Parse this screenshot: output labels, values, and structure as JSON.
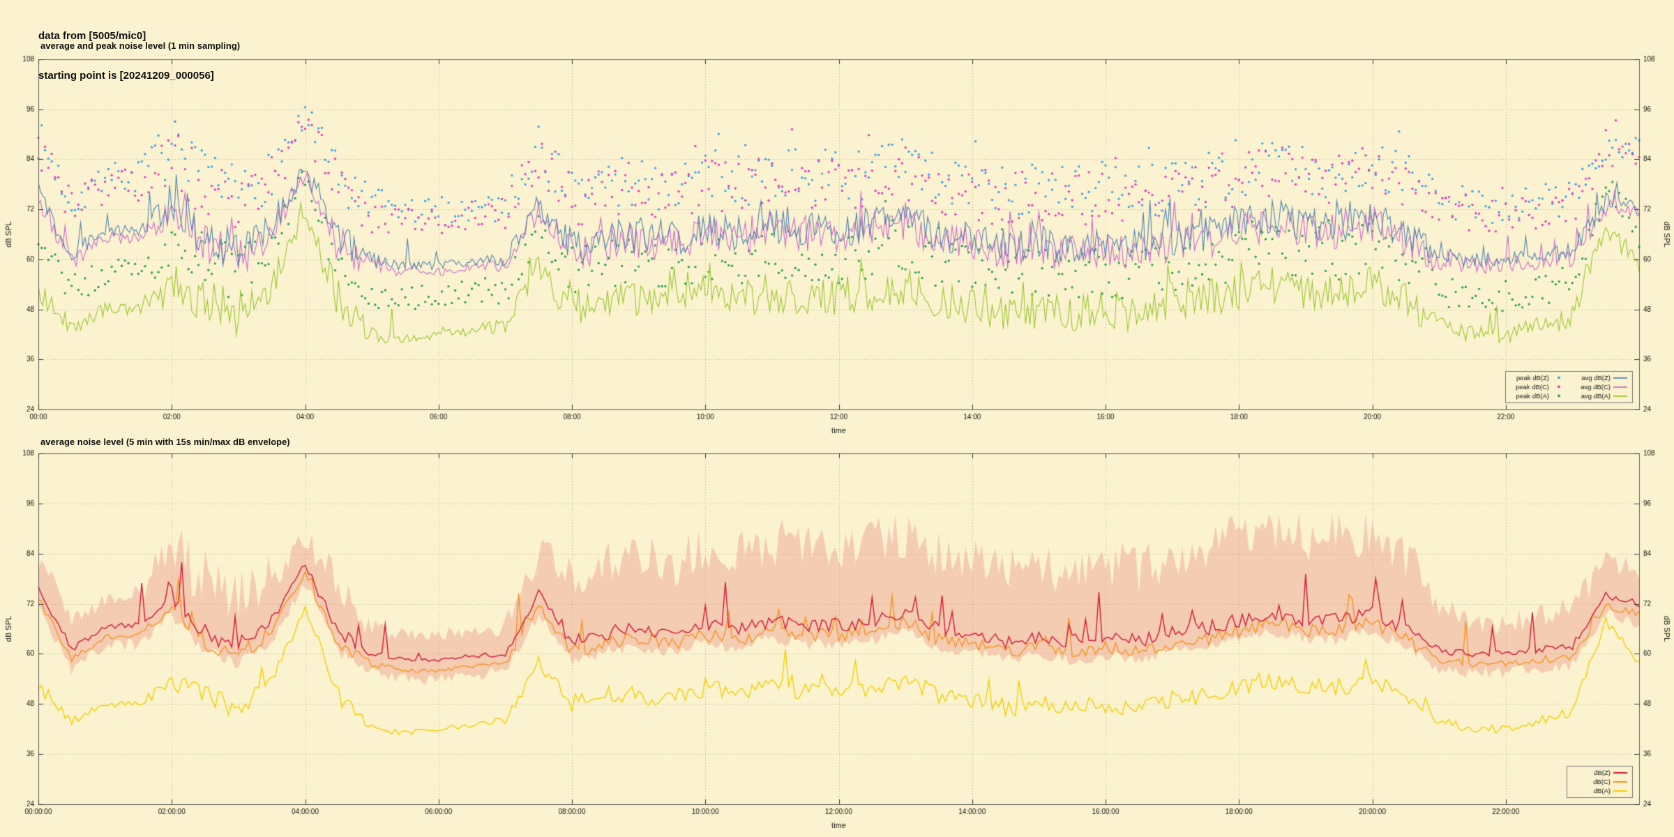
{
  "header": {
    "line1": "data from [5005/mic0]",
    "line2": "starting point is [20241209_000056]"
  },
  "colors": {
    "background": "#fbf3cf",
    "grid": "#b8ad85",
    "border": "#5f5f5f",
    "text": "#111111"
  },
  "chart_data": [
    {
      "type": "line",
      "title": "average and peak noise level (1 min sampling)",
      "xlabel": "time",
      "ylabel_left": "dB SPL",
      "ylabel_right": "dB SPL",
      "ylim": [
        24,
        108
      ],
      "yticks": [
        24,
        36,
        48,
        60,
        72,
        84,
        96,
        108
      ],
      "x_range_minutes": [
        0,
        1440
      ],
      "xtick_minutes": [
        0,
        120,
        240,
        360,
        480,
        600,
        720,
        840,
        960,
        1080,
        1200,
        1320
      ],
      "xtick_labels": [
        "00:00",
        "02:00",
        "04:00",
        "06:00",
        "08:00",
        "10:00",
        "12:00",
        "14:00",
        "16:00",
        "18:00",
        "20:00",
        "22:00"
      ],
      "grid": true,
      "anchor_step_min": 30,
      "sample_step_min": 2,
      "scatter_step_min": 3,
      "jitter_profile": [
        0.6,
        0.5,
        0.35,
        0.35,
        1.2,
        1.2,
        1.2,
        0.9,
        0.45,
        1.1,
        0.5,
        0.25,
        0.25,
        0.3,
        0.4,
        0.8,
        1,
        1,
        1,
        1,
        1,
        1,
        1,
        1,
        1,
        1,
        1,
        1,
        1,
        1,
        1,
        1,
        1,
        1,
        1,
        1,
        1,
        1,
        1,
        1,
        1,
        1,
        0.6,
        0.45,
        0.45,
        0.5,
        0.6,
        0.5,
        0.5
      ],
      "series": [
        {
          "name": "peak dB(Z)",
          "kind": "scatter",
          "color": "#42a0e8",
          "spread": 5,
          "cap": 96.5,
          "anchors": [
            89,
            74,
            79.5,
            80,
            87,
            78,
            75,
            81,
            94.5,
            78,
            73,
            71.5,
            71.5,
            72.5,
            73,
            87,
            76,
            78,
            79,
            78,
            80,
            79,
            81,
            80,
            80,
            81,
            83,
            79,
            78,
            76,
            77,
            76,
            77,
            76,
            78,
            79,
            81,
            83,
            81,
            81,
            83,
            79,
            74,
            73,
            73,
            74,
            75,
            87,
            85
          ]
        },
        {
          "name": "peak dB(C)",
          "kind": "scatter",
          "color": "#e23cc8",
          "spread": 5,
          "cap": 95,
          "anchors": [
            87,
            72,
            77.5,
            78,
            85,
            76,
            73,
            79,
            92.5,
            76,
            71,
            69.5,
            69.5,
            70.5,
            71,
            85,
            74,
            76,
            77,
            76,
            78,
            77,
            79,
            78,
            78,
            79,
            81,
            77,
            76,
            74,
            75,
            74,
            75,
            74,
            76,
            77,
            79,
            81,
            79,
            79,
            81,
            77,
            72,
            71,
            71,
            72,
            73,
            85,
            83
          ]
        },
        {
          "name": "peak dB(A)",
          "kind": "scatter",
          "color": "#2f9e55",
          "spread": 4.5,
          "cap": 84,
          "anchors": [
            61,
            53,
            57,
            57,
            63,
            59,
            56,
            62,
            80.5,
            59,
            51,
            50,
            51,
            52,
            53,
            67,
            57,
            59,
            59,
            58,
            61,
            59,
            61,
            60,
            60,
            61,
            63,
            59,
            58,
            56,
            57,
            56,
            57,
            56,
            58,
            59,
            61,
            63,
            61,
            61,
            63,
            59,
            53,
            51,
            51,
            53,
            55,
            77,
            67
          ]
        },
        {
          "name": "avg dB(A)",
          "kind": "line",
          "color": "#97c52e",
          "width": 1.1,
          "jitter": 4.5,
          "spike_p": 0.08,
          "spike_amp": 6,
          "anchors": [
            52,
            44,
            48,
            48,
            54,
            50,
            47,
            53,
            71.5,
            50,
            42,
            41,
            42,
            43,
            44,
            58,
            48,
            50,
            50,
            49,
            52,
            50,
            52,
            51,
            51,
            52,
            54,
            50,
            49,
            47,
            48,
            47,
            48,
            47,
            49,
            50,
            52,
            54,
            52,
            52,
            54,
            50,
            44,
            42,
            42,
            44,
            46,
            68,
            58
          ]
        },
        {
          "name": "avg dB(C)",
          "kind": "line",
          "color": "#cc66cc",
          "width": 1.1,
          "jitter": 4.2,
          "spike_p": 0.1,
          "spike_amp": 7,
          "anchors": [
            74.5,
            59.5,
            65,
            65.5,
            72.5,
            63.5,
            60.5,
            66.5,
            80,
            63.5,
            58.5,
            57,
            57,
            58,
            58.5,
            72.5,
            61.5,
            63.5,
            64.5,
            63.5,
            65.5,
            64.5,
            66.5,
            65.5,
            65.5,
            66.5,
            68.5,
            64.5,
            63.5,
            61.5,
            62.5,
            61.5,
            62.5,
            61.5,
            63.5,
            64.5,
            66.5,
            68.5,
            66.5,
            66.5,
            68.5,
            64.5,
            59.5,
            58.5,
            58.5,
            59.5,
            60.5,
            72.5,
            70.5
          ]
        },
        {
          "name": "avg dB(Z)",
          "kind": "line",
          "color": "#4f81b0",
          "width": 1.1,
          "jitter": 4.2,
          "spike_p": 0.1,
          "spike_amp": 7,
          "anchors": [
            76,
            61,
            66.5,
            67,
            74,
            65,
            62,
            68,
            81.5,
            65,
            60,
            58.5,
            58.5,
            59.5,
            60,
            74,
            63,
            65,
            66,
            65,
            67,
            66,
            68,
            67,
            67,
            68,
            70,
            66,
            65,
            63,
            64,
            63,
            64,
            63,
            65,
            66,
            68,
            70,
            68,
            68,
            70,
            66,
            61,
            60,
            60,
            61,
            62,
            74,
            72
          ]
        }
      ],
      "legend": {
        "position": "bottom-right",
        "columns": [
          [
            "peak dB(Z)",
            "peak dB(C)",
            "peak dB(A)"
          ],
          [
            "avg dB(Z)",
            "avg dB(C)",
            "avg dB(A)"
          ]
        ]
      }
    },
    {
      "type": "line",
      "title": "average noise level (5 min with 15s min/max dB envelope)",
      "xlabel": "time",
      "ylabel_left": "dB SPL",
      "ylabel_right": "dB SPL",
      "ylim": [
        24,
        108
      ],
      "yticks": [
        24,
        36,
        48,
        60,
        72,
        84,
        96,
        108
      ],
      "x_range_minutes": [
        0,
        1440
      ],
      "xtick_minutes": [
        0,
        120,
        240,
        360,
        480,
        600,
        720,
        840,
        960,
        1080,
        1200,
        1320
      ],
      "xtick_labels": [
        "00:00:00",
        "02:00:00",
        "04:00:00",
        "06:00:00",
        "08:00:00",
        "10:00:00",
        "12:00:00",
        "14:00:00",
        "16:00:00",
        "18:00:00",
        "20:00:00",
        "22:00:00"
      ],
      "grid": true,
      "anchor_step_min": 30,
      "sample_step_min": 3,
      "scatter_step_min": 3,
      "jitter_profile": [
        0.6,
        0.5,
        0.35,
        0.35,
        1.2,
        1.2,
        1.2,
        0.9,
        0.45,
        1.1,
        0.5,
        0.25,
        0.25,
        0.3,
        0.4,
        0.8,
        1,
        1,
        1,
        1,
        1,
        1,
        1,
        1,
        1,
        1,
        1,
        1,
        1,
        1,
        1,
        1,
        1,
        1,
        1,
        1,
        1,
        1,
        1,
        1,
        1,
        1,
        0.6,
        0.45,
        0.45,
        0.5,
        0.6,
        0.5,
        0.5
      ],
      "envelope": {
        "label": "15s min/max dB envelope",
        "color": "rgba(225,105,105,0.28)",
        "top_jitter": 6,
        "bottom_jitter": 1.5,
        "top_anchors": [
          82,
          67,
          72,
          74,
          83,
          76,
          70,
          78,
          87,
          76,
          65,
          64,
          64,
          65,
          66,
          83,
          75,
          80,
          82,
          80,
          84,
          82,
          85,
          84,
          84,
          85,
          86,
          82,
          80,
          78,
          80,
          78,
          80,
          78,
          82,
          84,
          86,
          87,
          86,
          86,
          87,
          82,
          71,
          66,
          66,
          68,
          70,
          81,
          79
        ],
        "bottom_anchors": [
          71.5,
          56.5,
          62,
          62.5,
          69.5,
          60.5,
          57.5,
          63.5,
          77,
          60.5,
          55.5,
          54,
          54,
          55,
          55.5,
          69.5,
          58.5,
          60.5,
          61.5,
          60.5,
          62.5,
          61.5,
          63.5,
          62.5,
          62.5,
          63.5,
          65.5,
          61.5,
          60.5,
          58.5,
          59.5,
          58.5,
          59.5,
          58.5,
          60.5,
          61.5,
          63.5,
          65.5,
          63.5,
          63.5,
          65.5,
          61.5,
          56.5,
          55.5,
          55.5,
          56.5,
          57.5,
          69.5,
          67.5
        ]
      },
      "series": [
        {
          "name": "dB(A)",
          "kind": "line",
          "color": "#f2ce02",
          "width": 1.4,
          "jitter": 2.2,
          "spike_p": 0.04,
          "spike_amp": 8,
          "anchors": [
            52,
            44,
            48,
            48,
            54,
            50,
            47,
            53,
            71.5,
            50,
            42,
            41,
            42,
            43,
            44,
            58,
            48,
            50,
            50,
            49,
            52,
            50,
            52,
            51,
            51,
            52,
            54,
            50,
            49,
            47,
            48,
            47,
            48,
            47,
            49,
            50,
            52,
            54,
            52,
            52,
            54,
            50,
            44,
            42,
            42,
            44,
            46,
            68,
            58
          ]
        },
        {
          "name": "dB(C)",
          "kind": "line",
          "color": "#f5921e",
          "width": 1.4,
          "jitter": 1.7,
          "spike_p": 0.05,
          "spike_amp": 11,
          "anchors": [
            73.5,
            58.5,
            64,
            64.5,
            71.5,
            62.5,
            59.5,
            65.5,
            79,
            62.5,
            57.5,
            56,
            56,
            57,
            57.5,
            71.5,
            60.5,
            62.5,
            63.5,
            62.5,
            64.5,
            63.5,
            65.5,
            64.5,
            64.5,
            65.5,
            67.5,
            63.5,
            62.5,
            60.5,
            61.5,
            60.5,
            61.5,
            60.5,
            62.5,
            63.5,
            65.5,
            67.5,
            65.5,
            65.5,
            67.5,
            63.5,
            58.5,
            57.5,
            57.5,
            58.5,
            59.5,
            71.5,
            69.5
          ]
        },
        {
          "name": "dB(Z)",
          "kind": "line",
          "color": "#d41e3c",
          "width": 1.5,
          "jitter": 1.7,
          "spike_p": 0.05,
          "spike_amp": 12,
          "anchors": [
            76,
            61,
            66.5,
            67,
            74,
            65,
            62,
            68,
            81.5,
            65,
            60,
            58.5,
            58.5,
            59.5,
            60,
            74,
            63,
            65,
            66,
            65,
            67,
            66,
            68,
            67,
            67,
            68,
            70,
            66,
            65,
            63,
            64,
            63,
            64,
            63,
            65,
            66,
            68,
            70,
            68,
            68,
            70,
            66,
            61,
            60,
            60,
            61,
            62,
            74,
            72
          ]
        }
      ],
      "legend": {
        "position": "bottom-right",
        "columns": [
          [
            "dB(Z)",
            "dB(C)",
            "dB(A)"
          ]
        ]
      }
    }
  ]
}
